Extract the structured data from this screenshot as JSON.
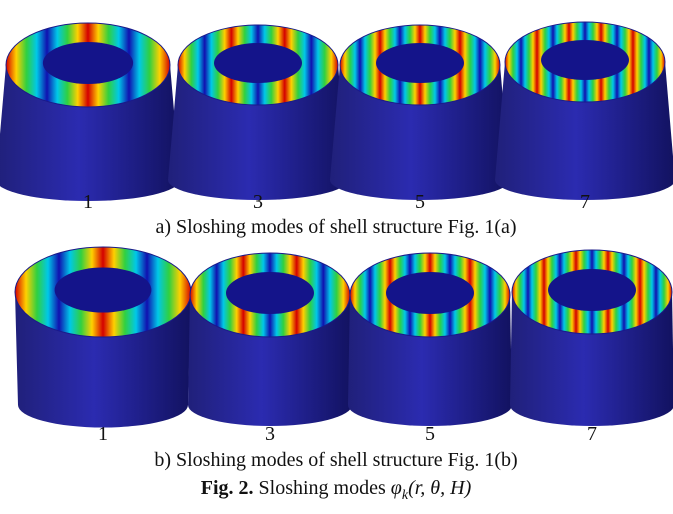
{
  "panels": [
    {
      "labels": [
        "1",
        "3",
        "5",
        "7"
      ],
      "caption": "a) Sloshing modes of shell structure Fig. 1(a)"
    },
    {
      "labels": [
        "1",
        "3",
        "5",
        "7"
      ],
      "caption": "b) Sloshing modes of shell structure Fig. 1(b)"
    }
  ],
  "figure_caption": {
    "label": "Fig. 2.",
    "text": " Sloshing modes ",
    "math_symbol": "φ",
    "math_subscript": "k",
    "math_args": "(r, θ, H)"
  }
}
